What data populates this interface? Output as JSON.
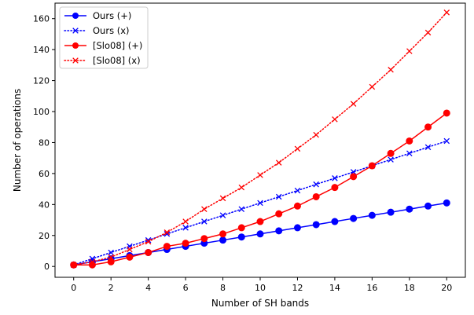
{
  "chart_data": {
    "type": "line",
    "xlabel": "Number of SH bands",
    "ylabel": "Number of operations",
    "xlim": [
      -1,
      21
    ],
    "ylim": [
      -7,
      170
    ],
    "xticks": [
      0,
      2,
      4,
      6,
      8,
      10,
      12,
      14,
      16,
      18,
      20
    ],
    "yticks": [
      0,
      20,
      40,
      60,
      80,
      100,
      120,
      140,
      160
    ],
    "grid": false,
    "legend_position": "top-left",
    "x": [
      0,
      1,
      2,
      3,
      4,
      5,
      6,
      7,
      8,
      9,
      10,
      11,
      12,
      13,
      14,
      15,
      16,
      17,
      18,
      19,
      20
    ],
    "series": [
      {
        "name": "Ours (+)",
        "color": "#0000ff",
        "linestyle": "solid",
        "marker": "circle",
        "values": [
          1,
          3,
          5,
          7,
          9,
          11,
          13,
          15,
          17,
          19,
          21,
          23,
          25,
          27,
          29,
          31,
          33,
          35,
          37,
          39,
          41
        ]
      },
      {
        "name": "Ours (x)",
        "color": "#0000ff",
        "linestyle": "dotted",
        "marker": "x",
        "values": [
          1,
          5,
          9,
          13,
          17,
          21,
          25,
          29,
          33,
          37,
          41,
          45,
          49,
          53,
          57,
          61,
          65,
          69,
          73,
          77,
          81
        ]
      },
      {
        "name": "[Slo08] (+)",
        "color": "#ff0000",
        "linestyle": "solid",
        "marker": "circle",
        "values": [
          1,
          1,
          3,
          6,
          9,
          13,
          15,
          18,
          21,
          25,
          29,
          34,
          39,
          45,
          51,
          58,
          65,
          73,
          81,
          90,
          99
        ]
      },
      {
        "name": "[Slo08] (x)",
        "color": "#ff0000",
        "linestyle": "dotted",
        "marker": "x",
        "values": [
          1,
          3,
          6,
          11,
          16,
          22,
          29,
          37,
          44,
          51,
          59,
          67,
          76,
          85,
          95,
          105,
          116,
          127,
          139,
          151,
          164
        ]
      }
    ]
  }
}
